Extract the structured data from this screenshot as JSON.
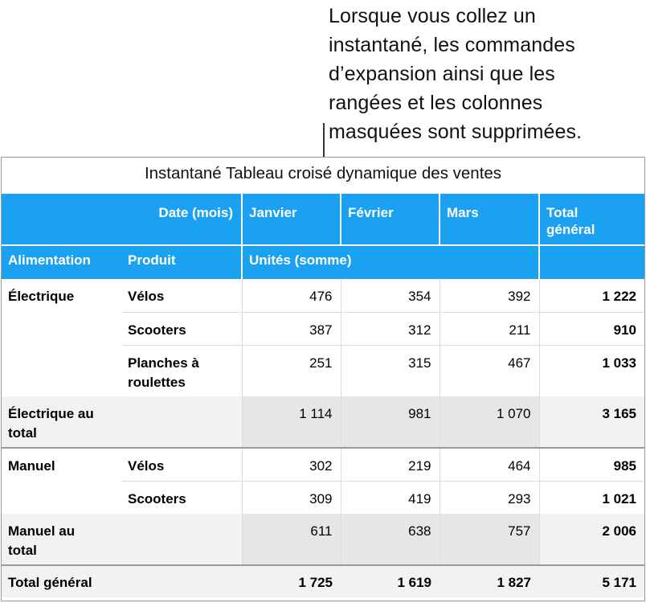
{
  "callout": {
    "lines": [
      "Lorsque vous collez un",
      "instantané, les commandes",
      "d’expansion ainsi que les",
      "rangées et les colonnes",
      "masquées sont supprimées."
    ]
  },
  "table": {
    "title": "Instantané Tableau croisé dynamique des ventes",
    "header1": {
      "date_label": "Date (mois)",
      "months": [
        "Janvier",
        "Février",
        "Mars"
      ],
      "total_line1": "Total",
      "total_line2": "général"
    },
    "header2": {
      "col1": "Alimentation",
      "col2": "Produit",
      "values_label": "Unités (somme)"
    },
    "rows": {
      "e_velos": {
        "group": "Électrique",
        "product": "Vélos",
        "jan": "476",
        "feb": "354",
        "mar": "392",
        "total": "1 222"
      },
      "e_scooters": {
        "product": "Scooters",
        "jan": "387",
        "feb": "312",
        "mar": "211",
        "total": "910"
      },
      "e_planches": {
        "product_line1": "Planches à",
        "product_line2": "roulettes",
        "jan": "251",
        "feb": "315",
        "mar": "467",
        "total": "1 033"
      },
      "e_total": {
        "label_line1": "Électrique au",
        "label_line2": "total",
        "jan": "1 114",
        "feb": "981",
        "mar": "1 070",
        "total": "3 165"
      },
      "m_velos": {
        "group": "Manuel",
        "product": "Vélos",
        "jan": "302",
        "feb": "219",
        "mar": "464",
        "total": "985"
      },
      "m_scooters": {
        "product": "Scooters",
        "jan": "309",
        "feb": "419",
        "mar": "293",
        "total": "1 021"
      },
      "m_total": {
        "label_line1": "Manuel au",
        "label_line2": "total",
        "jan": "611",
        "feb": "638",
        "mar": "757",
        "total": "2 006"
      },
      "grand": {
        "label": "Total général",
        "jan": "1 725",
        "feb": "1 619",
        "mar": "1 827",
        "total": "5 171"
      }
    }
  },
  "colors": {
    "header_blue": "#1ba1f2",
    "subtotal_gray": "#f2f2f2",
    "shade_gray": "#e6e6e6"
  }
}
